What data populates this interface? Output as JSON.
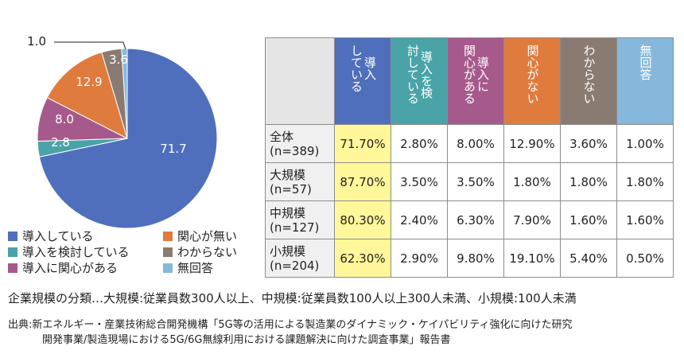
{
  "chart_data": [
    {
      "type": "pie",
      "slices": [
        {
          "label": "導入している",
          "value": 71.7,
          "color": "#4f6fbd"
        },
        {
          "label": "導入を検討している",
          "value": 2.8,
          "color": "#4aa3a7"
        },
        {
          "label": "導入に関心がある",
          "value": 8.0,
          "color": "#a65a8c"
        },
        {
          "label": "関心が無い",
          "value": 12.9,
          "color": "#e07b3e"
        },
        {
          "label": "わからない",
          "value": 3.6,
          "color": "#8a7b72"
        },
        {
          "label": "無回答",
          "value": 1.0,
          "color": "#86b8db"
        }
      ],
      "data_labels": [
        "71.7",
        "2.8",
        "8.0",
        "12.9",
        "3.6",
        "1.0"
      ]
    },
    {
      "type": "table",
      "columns": [
        {
          "label": "導入\nしている",
          "color": "#4f6fbd"
        },
        {
          "label": "導入を検\n討している",
          "color": "#4aa3a7"
        },
        {
          "label": "導入に\n関心がある",
          "color": "#a65a8c"
        },
        {
          "label": "関心がない",
          "color": "#e07b3e"
        },
        {
          "label": "わからない",
          "color": "#8a7b72"
        },
        {
          "label": "無回答",
          "color": "#86b8db"
        }
      ],
      "rows": [
        {
          "label_line1": "全体",
          "label_line2": "(n=389)",
          "values": [
            "71.70%",
            "2.80%",
            "8.00%",
            "12.90%",
            "3.60%",
            "1.00%"
          ]
        },
        {
          "label_line1": "大規模",
          "label_line2": "(n=57)",
          "values": [
            "87.70%",
            "3.50%",
            "3.50%",
            "1.80%",
            "1.80%",
            "1.80%"
          ]
        },
        {
          "label_line1": "中規模",
          "label_line2": "(n=127)",
          "values": [
            "80.30%",
            "2.40%",
            "6.30%",
            "7.90%",
            "1.60%",
            "1.60%"
          ]
        },
        {
          "label_line1": "小規模",
          "label_line2": "(n=204)",
          "values": [
            "62.30%",
            "2.90%",
            "9.80%",
            "19.10%",
            "5.40%",
            "0.50%"
          ]
        }
      ],
      "highlight_color": "#fff799"
    }
  ],
  "legend": [
    {
      "label": "導入している",
      "color": "#4f6fbd"
    },
    {
      "label": "関心が無い",
      "color": "#e07b3e"
    },
    {
      "label": "導入を検討している",
      "color": "#4aa3a7"
    },
    {
      "label": "わからない",
      "color": "#8a7b72"
    },
    {
      "label": "導入に関心がある",
      "color": "#a65a8c"
    },
    {
      "label": "無回答",
      "color": "#86b8db"
    }
  ],
  "note": "企業規模の分類…大規模:従業員数300人以上、中規模:従業員数100人以上300人未満、小規模:100人未満",
  "source_line1": "出典:新エネルギー・産業技術総合開発機構「5G等の活用による製造業のダイナミック・ケイパビリティ強化に向けた研究",
  "source_line2": "開発事業/製造現場における5G/6G無線利用における課題解決に向けた調査事業」報告書"
}
